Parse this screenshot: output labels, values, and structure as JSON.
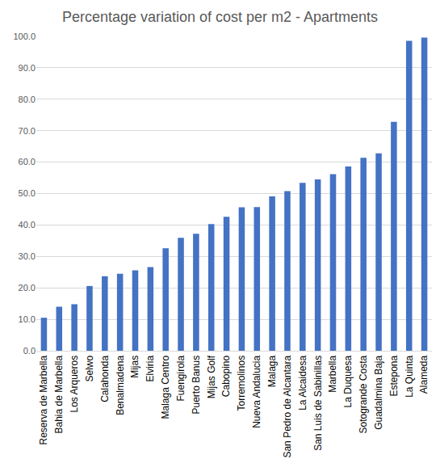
{
  "chart_data": {
    "type": "bar",
    "title": "Percentage variation of cost per m2 - Apartments",
    "categories": [
      "Reserva de Marbella",
      "Bahia de Marbella",
      "Los Arqueros",
      "Selwo",
      "Calahonda",
      "Benalmadena",
      "Mijas",
      "Elviria",
      "Malaga Centro",
      "Fuengirola",
      "Puerto Banus",
      "Mijas Golf",
      "Cabopino",
      "Torremolinos",
      "Nueva Andalucia",
      "Malaga",
      "San Pedro de Alcantara",
      "La Alcaidesa",
      "San Luis de Sabinillas",
      "Marbella",
      "La Duquesa",
      "Sotogrande Costa",
      "Guadalmina Baja",
      "Estepona",
      "La Quinta",
      "Alameda"
    ],
    "values": [
      10.5,
      14.0,
      14.8,
      20.6,
      23.7,
      24.5,
      25.6,
      26.6,
      32.6,
      35.9,
      37.2,
      40.3,
      42.6,
      45.6,
      45.7,
      49.1,
      50.8,
      53.4,
      54.5,
      56.2,
      58.6,
      61.4,
      62.8,
      72.8,
      98.6,
      99.6
    ],
    "color": "#4472c4",
    "ylim": [
      0,
      100
    ],
    "yticks": [
      {
        "value": 0,
        "label": "0.0"
      },
      {
        "value": 10,
        "label": "10.0"
      },
      {
        "value": 20,
        "label": "20.0"
      },
      {
        "value": 30,
        "label": "30.0"
      },
      {
        "value": 40,
        "label": "40.0"
      },
      {
        "value": 50,
        "label": "50.0"
      },
      {
        "value": 60,
        "label": "60.0"
      },
      {
        "value": 70,
        "label": "70.0"
      },
      {
        "value": 80,
        "label": "80.0"
      },
      {
        "value": 90,
        "label": "90.0"
      },
      {
        "value": 100,
        "label": "100.0"
      }
    ],
    "grid": true
  }
}
